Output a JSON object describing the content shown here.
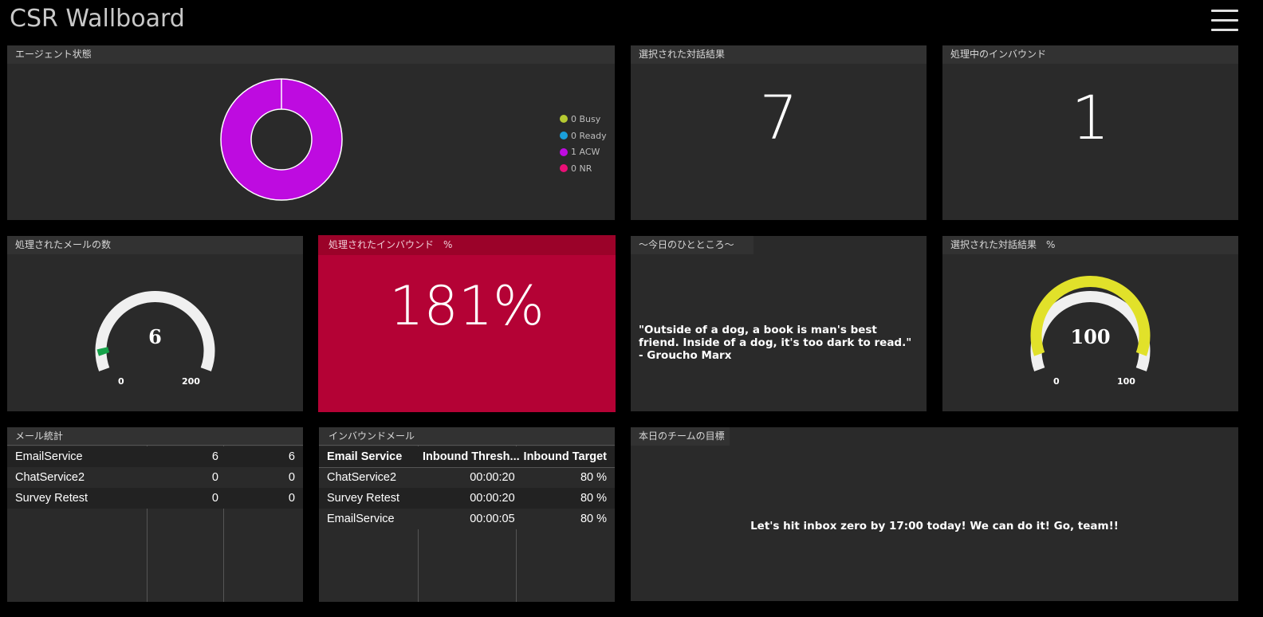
{
  "app": {
    "title": "CSR Wallboard",
    "menu_icon": "hamburger-menu-icon"
  },
  "agent_status": {
    "title": "エージェント状態",
    "legend": [
      {
        "label": "0 Busy",
        "color": "#b5c931"
      },
      {
        "label": "0 Ready",
        "color": "#1a9fdb"
      },
      {
        "label": "1 ACW",
        "color": "#be0be0"
      },
      {
        "label": "0 NR",
        "color": "#ea0f77"
      }
    ]
  },
  "selected_results": {
    "title": "選択された対話結果",
    "value": "7"
  },
  "inbound_in_progress": {
    "title": "処理中のインバウンド",
    "value": "1"
  },
  "emails_processed": {
    "title": "処理されたメールの数",
    "value": "6",
    "min": "0",
    "max": "200",
    "fraction": 0.03,
    "color": "#16a34a"
  },
  "inbound_processed_pct": {
    "title": "処理されたインバウンド　%",
    "value": "181%"
  },
  "quote": {
    "title": "〜今日のひとところ〜",
    "text": "\"Outside of a dog, a book is man's best friend. Inside of a dog, it's too dark to read.\" - Groucho Marx"
  },
  "selected_results_pct": {
    "title": "選択された対話結果　%",
    "value": "100",
    "min": "0",
    "max": "100",
    "fraction": 1.0,
    "color": "#e1e12a"
  },
  "mail_stats": {
    "title": "メール統計",
    "rows": [
      [
        "EmailService",
        "6",
        "6"
      ],
      [
        "ChatService2",
        "0",
        "0"
      ],
      [
        "Survey Retest",
        "0",
        "0"
      ]
    ]
  },
  "inbound_mail": {
    "title": "インバウンドメール",
    "headers": [
      "Email Service",
      "Inbound Thresh...",
      "Inbound Target"
    ],
    "rows": [
      [
        "ChatService2",
        "00:00:20",
        "80 %"
      ],
      [
        "Survey Retest",
        "00:00:20",
        "80 %"
      ],
      [
        "EmailService",
        "00:00:05",
        "80 %"
      ]
    ]
  },
  "team_goal": {
    "title": "本日のチームの目標",
    "text": "Let's hit inbox zero by 17:00 today! We can do it! Go, team!!"
  }
}
